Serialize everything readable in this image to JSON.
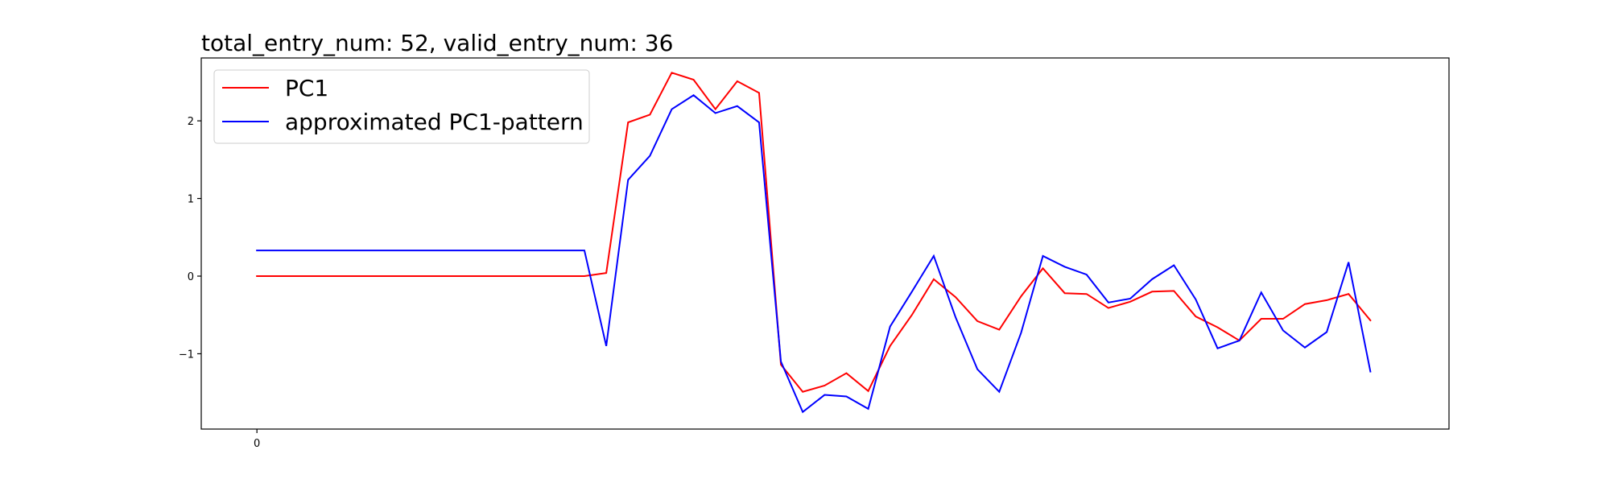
{
  "chart_data": {
    "type": "line",
    "title": "total_entry_num: 52, valid_entry_num: 36",
    "xlabel": "",
    "ylabel": "",
    "x_ticks": [
      0
    ],
    "x_tick_labels": [
      "0"
    ],
    "y_ticks": [
      -1,
      0,
      1,
      2
    ],
    "y_tick_labels": [
      "−1",
      "0",
      "1",
      "2"
    ],
    "xlim": [
      -2.55,
      54.6
    ],
    "ylim": [
      -1.97,
      2.81
    ],
    "grid": false,
    "legend_position": "top-left",
    "x": [
      0,
      1,
      2,
      3,
      4,
      5,
      6,
      7,
      8,
      9,
      10,
      11,
      12,
      13,
      14,
      15,
      16,
      17,
      18,
      19,
      20,
      21,
      22,
      23,
      24,
      25,
      26,
      27,
      28,
      29,
      30,
      31,
      32,
      33,
      34,
      35,
      36,
      37,
      38,
      39,
      40,
      41,
      42,
      43,
      44,
      45,
      46,
      47,
      48,
      49,
      50,
      51
    ],
    "series": [
      {
        "name": "PC1",
        "color": "#ff0000",
        "values": [
          0,
          0,
          0,
          0,
          0,
          0,
          0,
          0,
          0,
          0,
          0,
          0,
          0,
          0,
          0,
          0,
          0.04,
          1.98,
          2.08,
          2.62,
          2.53,
          2.15,
          2.51,
          2.36,
          -1.14,
          -1.49,
          -1.41,
          -1.25,
          -1.48,
          -0.9,
          -0.5,
          -0.04,
          -0.27,
          -0.58,
          -0.69,
          -0.26,
          0.1,
          -0.22,
          -0.23,
          -0.41,
          -0.33,
          -0.2,
          -0.19,
          -0.52,
          -0.66,
          -0.83,
          -0.55,
          -0.55,
          -0.36,
          -0.31,
          -0.23,
          -0.57
        ]
      },
      {
        "name": "approximated PC1-pattern",
        "color": "#0000ff",
        "values": [
          0.33,
          0.33,
          0.33,
          0.33,
          0.33,
          0.33,
          0.33,
          0.33,
          0.33,
          0.33,
          0.33,
          0.33,
          0.33,
          0.33,
          0.33,
          0.33,
          -0.9,
          1.24,
          1.55,
          2.15,
          2.33,
          2.1,
          2.19,
          1.98,
          -1.1,
          -1.75,
          -1.53,
          -1.55,
          -1.71,
          -0.65,
          -0.2,
          0.26,
          -0.53,
          -1.2,
          -1.49,
          -0.73,
          0.26,
          0.12,
          0.02,
          -0.34,
          -0.29,
          -0.04,
          0.14,
          -0.3,
          -0.93,
          -0.83,
          -0.21,
          -0.7,
          -0.92,
          -0.72,
          0.18,
          -1.23
        ]
      }
    ]
  }
}
